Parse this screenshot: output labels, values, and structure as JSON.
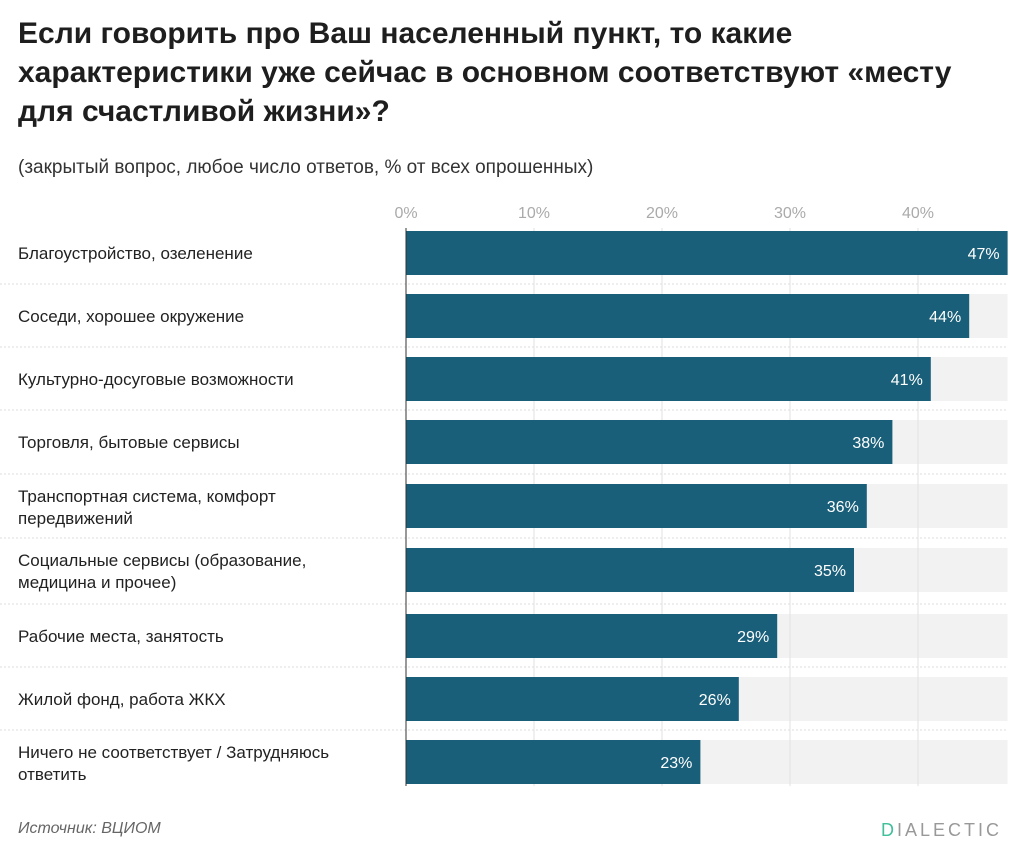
{
  "title": "Если говорить про Ваш населенный пункт, то какие характеристики уже сейчас в основном соответствуют «месту для счастливой жизни»?",
  "subtitle": "(закрытый вопрос, любое число ответов, % от всех опрошенных)",
  "source": "Источник: ВЦИОМ",
  "logo": "DIALECTIC",
  "colors": {
    "bar": "#1a5f7a",
    "track": "#f2f2f2",
    "logo_accent": "#3fbf9a"
  },
  "chart_data": {
    "type": "bar",
    "orientation": "horizontal",
    "categories": [
      [
        "Благоустройство, озеленение"
      ],
      [
        "Соседи, хорошее окружение"
      ],
      [
        "Культурно-досуговые возможности"
      ],
      [
        "Торговля, бытовые сервисы"
      ],
      [
        "Транспортная система, комфорт",
        "передвижений"
      ],
      [
        "Социальные сервисы (образование,",
        "медицина и прочее)"
      ],
      [
        "Рабочие места, занятость"
      ],
      [
        "Жилой фонд, работа ЖКХ"
      ],
      [
        "Ничего не соответствует / Затрудняюсь",
        "ответить"
      ]
    ],
    "values": [
      47,
      44,
      41,
      38,
      36,
      35,
      29,
      26,
      23
    ],
    "data_labels": [
      "47%",
      "44%",
      "41%",
      "38%",
      "36%",
      "35%",
      "29%",
      "26%",
      "23%"
    ],
    "xticks": [
      0,
      10,
      20,
      30,
      40
    ],
    "xtick_labels": [
      "0%",
      "10%",
      "20%",
      "30%",
      "40%"
    ],
    "xlim": [
      0,
      47
    ],
    "grid": true,
    "axis_position": "top"
  }
}
